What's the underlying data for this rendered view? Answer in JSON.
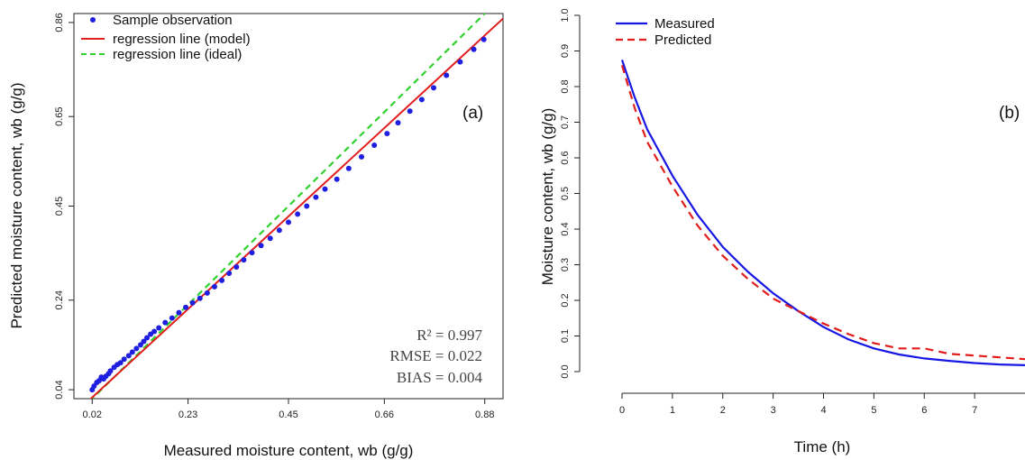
{
  "chart_data": [
    {
      "type": "scatter",
      "panel_label": "(a)",
      "xlabel": "Measured moisture content, wb (g/g)",
      "ylabel": "Predicted moisture content, wb (g/g)",
      "xlim": [
        -0.02,
        0.92
      ],
      "ylim": [
        0.02,
        0.88
      ],
      "xticks": [
        "0.02",
        "0.23",
        "0.45",
        "0.66",
        "0.88"
      ],
      "yticks": [
        "0.04",
        "0.24",
        "0.45",
        "0.65",
        "0.86"
      ],
      "legend": {
        "placement": "top-left",
        "entries": [
          "Sample observation",
          "regression line (model)",
          "regression line (ideal)"
        ]
      },
      "stats": {
        "r2": "R² = 0.997",
        "rmse": "RMSE = 0.022",
        "bias": "BIAS = 0.004"
      },
      "colors": {
        "points": "#1f1fe0",
        "model": "#e21d1d",
        "ideal": "#2fd12f"
      },
      "regression_model": {
        "intercept": 0.004,
        "slope": 0.94
      },
      "regression_ideal": {
        "intercept": 0.0,
        "slope": 1.0
      },
      "points": [
        [
          0.02,
          0.04
        ],
        [
          0.024,
          0.048
        ],
        [
          0.03,
          0.056
        ],
        [
          0.035,
          0.06
        ],
        [
          0.04,
          0.068
        ],
        [
          0.045,
          0.064
        ],
        [
          0.05,
          0.07
        ],
        [
          0.056,
          0.076
        ],
        [
          0.06,
          0.082
        ],
        [
          0.068,
          0.09
        ],
        [
          0.075,
          0.096
        ],
        [
          0.082,
          0.1
        ],
        [
          0.09,
          0.108
        ],
        [
          0.1,
          0.116
        ],
        [
          0.108,
          0.124
        ],
        [
          0.117,
          0.132
        ],
        [
          0.126,
          0.14
        ],
        [
          0.133,
          0.148
        ],
        [
          0.14,
          0.156
        ],
        [
          0.148,
          0.164
        ],
        [
          0.156,
          0.17
        ],
        [
          0.166,
          0.178
        ],
        [
          0.18,
          0.19
        ],
        [
          0.195,
          0.2
        ],
        [
          0.21,
          0.212
        ],
        [
          0.225,
          0.224
        ],
        [
          0.24,
          0.234
        ],
        [
          0.256,
          0.244
        ],
        [
          0.272,
          0.256
        ],
        [
          0.288,
          0.27
        ],
        [
          0.304,
          0.284
        ],
        [
          0.32,
          0.3
        ],
        [
          0.336,
          0.314
        ],
        [
          0.352,
          0.33
        ],
        [
          0.37,
          0.346
        ],
        [
          0.39,
          0.362
        ],
        [
          0.41,
          0.378
        ],
        [
          0.43,
          0.396
        ],
        [
          0.45,
          0.414
        ],
        [
          0.47,
          0.432
        ],
        [
          0.49,
          0.45
        ],
        [
          0.51,
          0.47
        ],
        [
          0.53,
          0.488
        ],
        [
          0.556,
          0.51
        ],
        [
          0.582,
          0.534
        ],
        [
          0.61,
          0.56
        ],
        [
          0.638,
          0.586
        ],
        [
          0.666,
          0.612
        ],
        [
          0.69,
          0.636
        ],
        [
          0.716,
          0.662
        ],
        [
          0.742,
          0.688
        ],
        [
          0.768,
          0.714
        ],
        [
          0.796,
          0.742
        ],
        [
          0.826,
          0.772
        ],
        [
          0.856,
          0.8
        ],
        [
          0.878,
          0.822
        ]
      ]
    },
    {
      "type": "line",
      "panel_label": "(b)",
      "xlabel": "Time (h)",
      "ylabel": "Moisture content, wb (g/g)",
      "xlim": [
        0,
        8
      ],
      "ylim": [
        0,
        1.0
      ],
      "xticks": [
        "0",
        "1",
        "2",
        "3",
        "4",
        "5",
        "6",
        "7"
      ],
      "yticks": [
        "0.0",
        "0.1",
        "0.2",
        "0.3",
        "0.4",
        "0.5",
        "0.6",
        "0.7",
        "0.8",
        "0.9",
        "1.0"
      ],
      "legend": {
        "placement": "top-left"
      },
      "series": [
        {
          "name": "Measured",
          "color": "#1717e3",
          "dash": "solid",
          "x": [
            0,
            0.25,
            0.5,
            1,
            1.5,
            2,
            2.5,
            3,
            3.5,
            4,
            4.5,
            5,
            5.5,
            6,
            6.5,
            7,
            7.5,
            8
          ],
          "y": [
            0.875,
            0.77,
            0.68,
            0.55,
            0.44,
            0.35,
            0.28,
            0.22,
            0.17,
            0.125,
            0.09,
            0.065,
            0.048,
            0.037,
            0.03,
            0.024,
            0.02,
            0.018
          ]
        },
        {
          "name": "Predicted",
          "color": "#e21d1d",
          "dash": "dashed",
          "x": [
            0,
            0.25,
            0.5,
            1,
            1.5,
            2,
            2.5,
            3,
            3.5,
            4,
            4.5,
            5,
            5.5,
            6,
            6.5,
            7,
            7.5,
            8
          ],
          "y": [
            0.86,
            0.74,
            0.645,
            0.52,
            0.41,
            0.325,
            0.26,
            0.205,
            0.17,
            0.135,
            0.105,
            0.08,
            0.065,
            0.065,
            0.05,
            0.045,
            0.04,
            0.035
          ]
        }
      ]
    }
  ]
}
